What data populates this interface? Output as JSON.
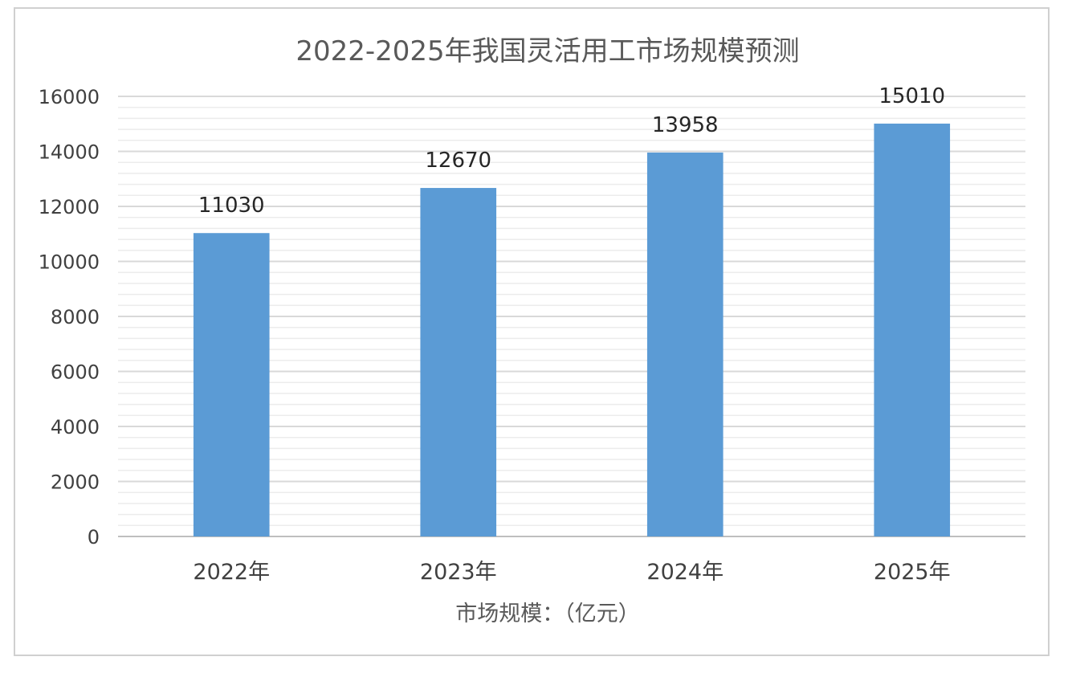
{
  "chart_data": {
    "type": "bar",
    "title": "2022-2025年我国灵活用工市场规模预测",
    "categories": [
      "2022年",
      "2023年",
      "2024年",
      "2025年"
    ],
    "series": [
      {
        "values": [
          11030,
          12670,
          13958,
          15010
        ]
      }
    ],
    "data_labels": [
      "11030",
      "12670",
      "13958",
      "15010"
    ],
    "xlabel": "市场规模：（亿元）",
    "ylabel": "",
    "ylim": [
      0,
      16000
    ],
    "y_ticks": [
      0,
      2000,
      4000,
      6000,
      8000,
      10000,
      12000,
      14000,
      16000
    ],
    "y_tick_labels": [
      "0",
      "2000",
      "4000",
      "6000",
      "8000",
      "10000",
      "12000",
      "14000",
      "16000"
    ],
    "grid": true,
    "minor_grid": true,
    "legend": "none",
    "bar_color": "#5b9bd5",
    "grid_color": "#d9d9d9"
  }
}
